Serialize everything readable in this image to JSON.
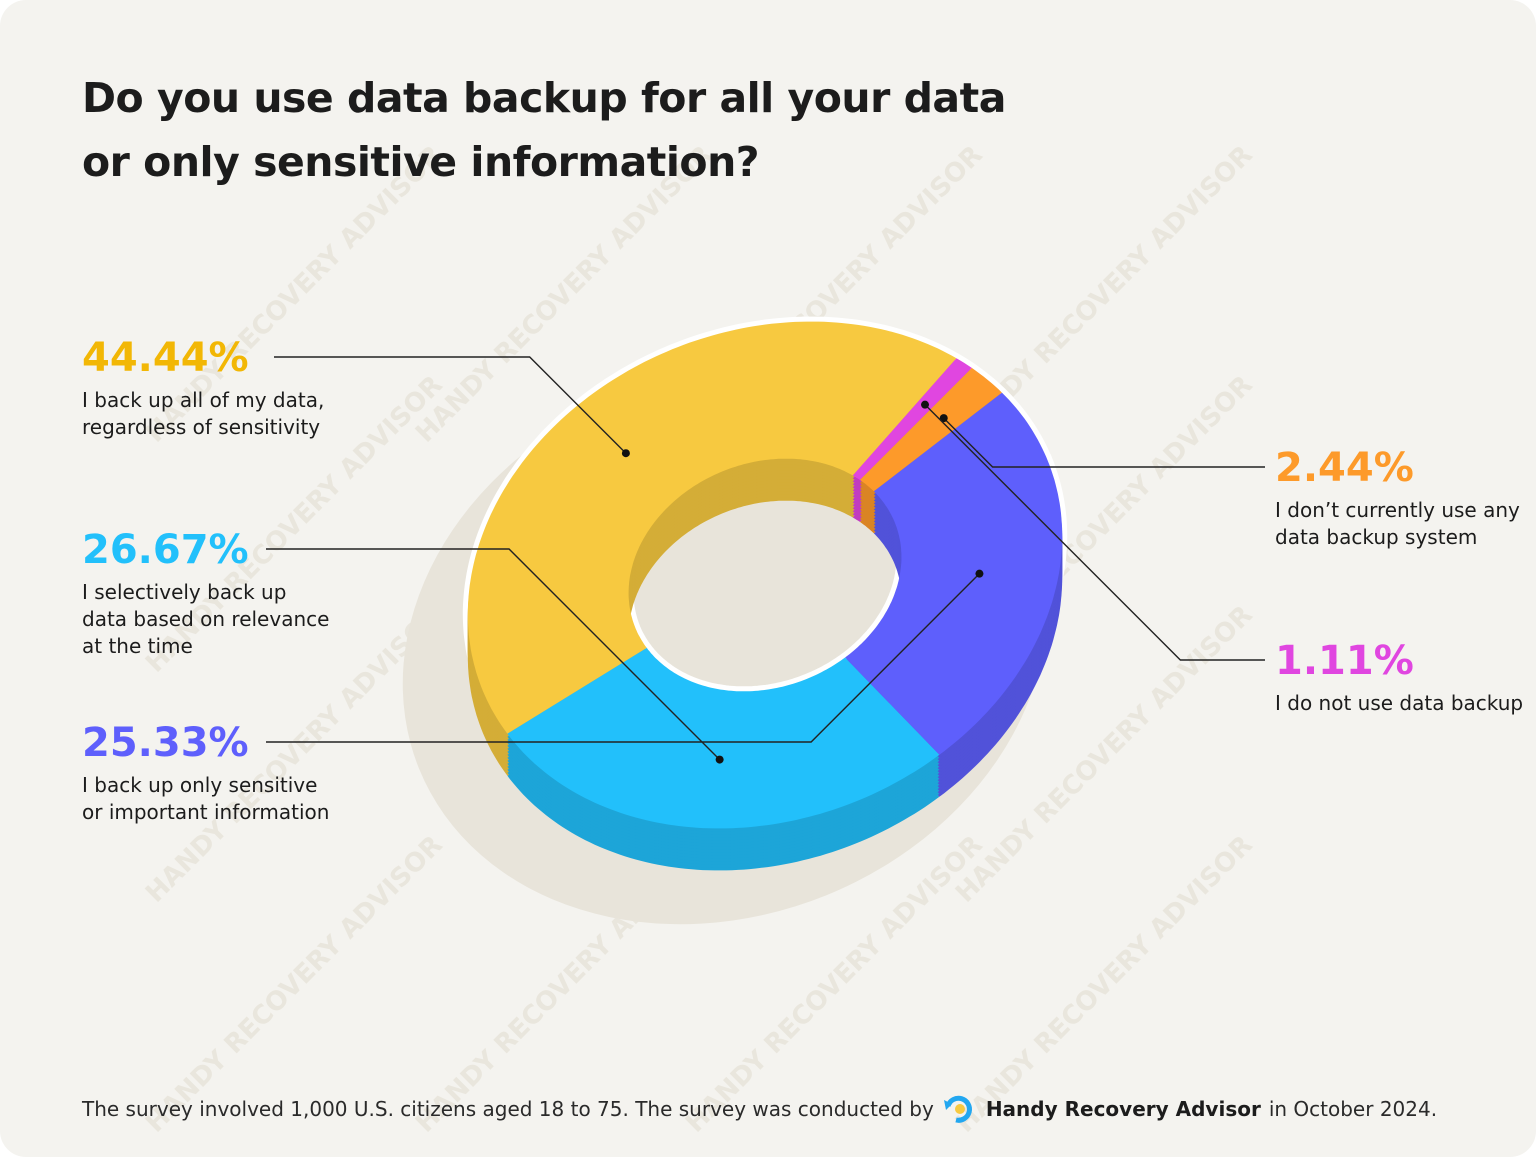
{
  "chart_data": {
    "type": "donut",
    "title": "Do you use data backup for all your data or only sensitive information?",
    "categories": [
      "I back up all of my data, regardless of sensitivity",
      "I selectively back up data based on relevance at the time",
      "I back up only sensitive or important information",
      "I don’t currently use any data backup system",
      "I do not use data backup"
    ],
    "values": [
      44.44,
      26.67,
      25.33,
      2.44,
      1.11
    ],
    "value_labels": [
      "44.44%",
      "26.67%",
      "25.33%",
      "2.44%",
      "1.11%"
    ],
    "colors": [
      "#f7c940",
      "#22c0fb",
      "#5e5ffc",
      "#fd9a2a",
      "#e046e0"
    ],
    "label_colors": [
      "#f2b705",
      "#22c0fb",
      "#5e5ffc",
      "#fd9a2a",
      "#e046e0"
    ],
    "watermark": "HANDY RECOVERY ADVISOR",
    "footnote": {
      "before": "The survey involved 1,000 U.S. citizens aged 18 to 75. The survey was conducted by",
      "brand": "Handy Recovery Advisor",
      "after": "in October 2024."
    }
  }
}
